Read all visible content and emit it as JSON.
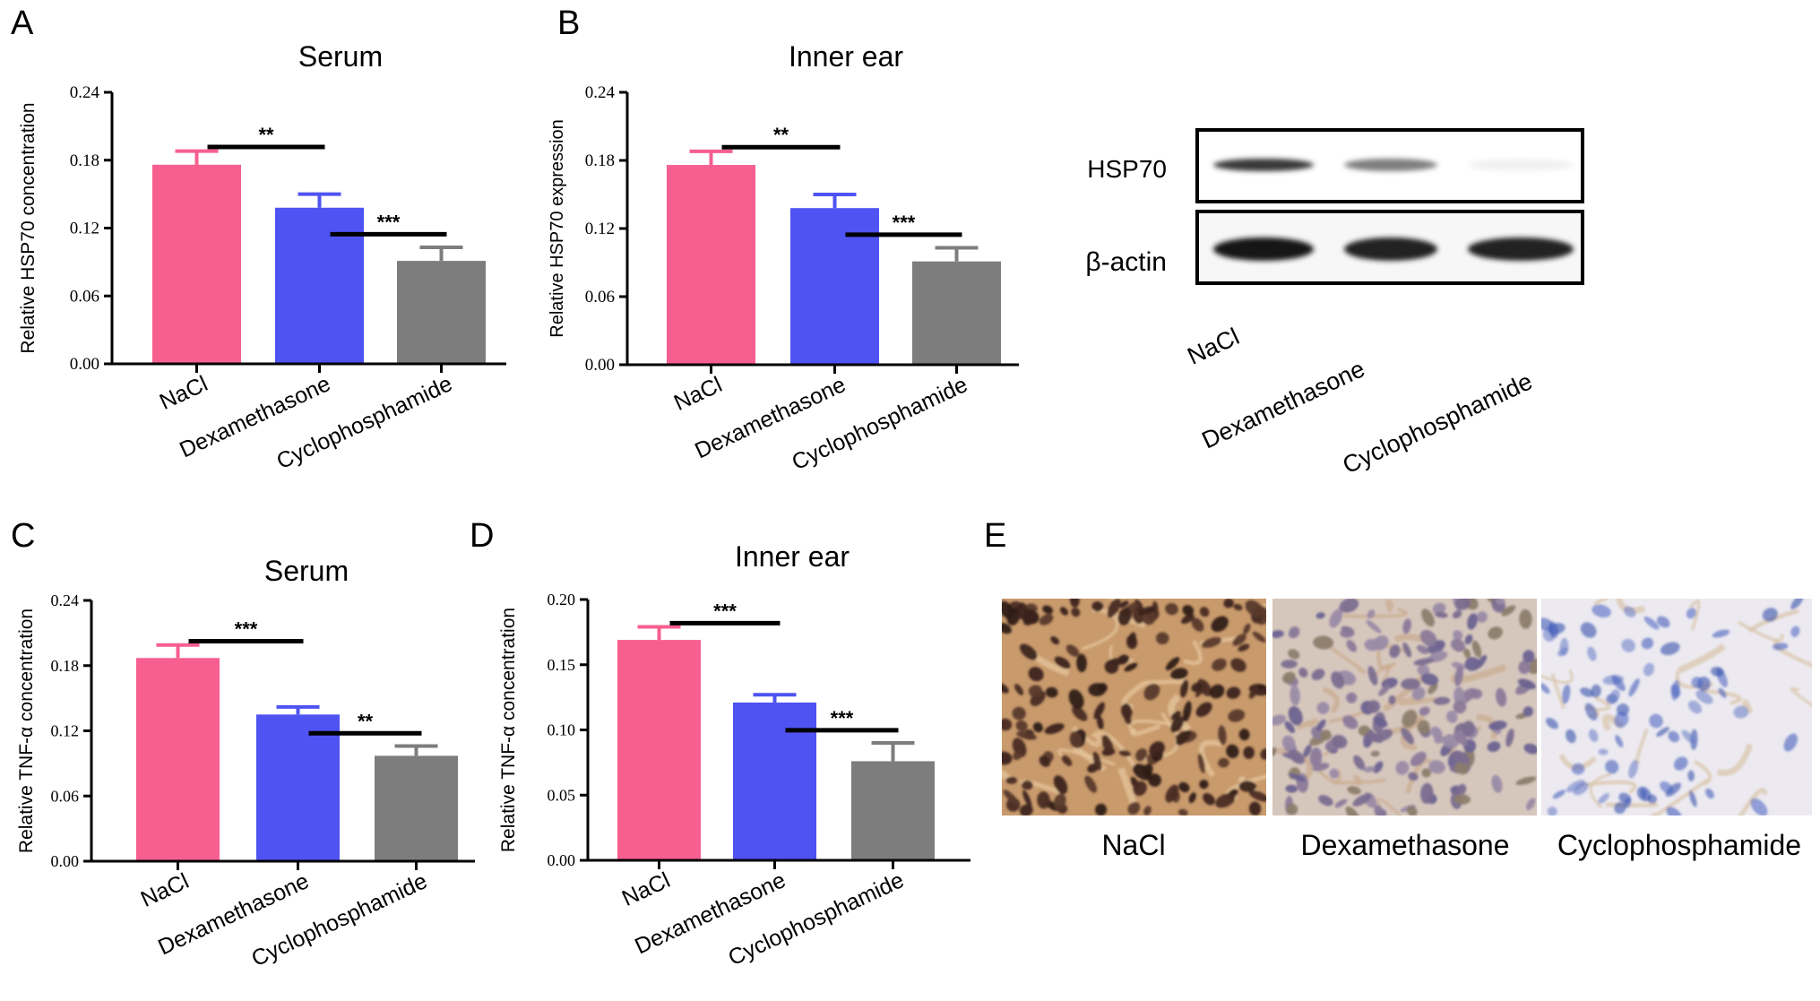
{
  "panels": {
    "A": "A",
    "B": "B",
    "C": "C",
    "D": "D",
    "E": "E"
  },
  "chart_data": [
    {
      "type": "bar",
      "panel": "A",
      "title": "Serum",
      "ylabel": "Relative HSP70 concentration",
      "categories": [
        "NaCl",
        "Dexamethasone",
        "Cyclophosphamide"
      ],
      "values": [
        0.176,
        0.138,
        0.091
      ],
      "errors": [
        0.012,
        0.012,
        0.012
      ],
      "ylim": [
        0,
        0.24
      ],
      "yticks": [
        "0.00",
        "0.06",
        "0.12",
        "0.18",
        "0.24"
      ],
      "significance": [
        {
          "from": 0,
          "to": 1,
          "label": "**"
        },
        {
          "from": 1,
          "to": 2,
          "label": "***"
        }
      ],
      "colors": [
        "#f65f8f",
        "#4f53f2",
        "#7d7d7d"
      ]
    },
    {
      "type": "bar",
      "panel": "B",
      "title": "Inner ear",
      "ylabel": "Relative HSP70 expression",
      "categories": [
        "NaCl",
        "Dexamethasone",
        "Cyclophosphamide"
      ],
      "values": [
        0.176,
        0.138,
        0.091
      ],
      "errors": [
        0.012,
        0.012,
        0.012
      ],
      "ylim": [
        0,
        0.24
      ],
      "yticks": [
        "0.00",
        "0.06",
        "0.12",
        "0.18",
        "0.24"
      ],
      "significance": [
        {
          "from": 0,
          "to": 1,
          "label": "**"
        },
        {
          "from": 1,
          "to": 2,
          "label": "***"
        }
      ],
      "colors": [
        "#f65f8f",
        "#4f53f2",
        "#7d7d7d"
      ]
    },
    {
      "type": "bar",
      "panel": "C",
      "title": "Serum",
      "ylabel": "Relative TNF-α concentration",
      "categories": [
        "NaCl",
        "Dexamethasone",
        "Cyclophosphamide"
      ],
      "values": [
        0.187,
        0.135,
        0.097
      ],
      "errors": [
        0.012,
        0.007,
        0.009
      ],
      "ylim": [
        0,
        0.24
      ],
      "yticks": [
        "0.00",
        "0.06",
        "0.12",
        "0.18",
        "0.24"
      ],
      "significance": [
        {
          "from": 0,
          "to": 1,
          "label": "***"
        },
        {
          "from": 1,
          "to": 2,
          "label": "**"
        }
      ],
      "colors": [
        "#f65f8f",
        "#4f53f2",
        "#7d7d7d"
      ]
    },
    {
      "type": "bar",
      "panel": "D",
      "title": "Inner ear",
      "ylabel": "Relative TNF-α concentration",
      "categories": [
        "NaCl",
        "Dexamethasone",
        "Cyclophosphamide"
      ],
      "values": [
        0.169,
        0.121,
        0.076
      ],
      "errors": [
        0.01,
        0.006,
        0.014
      ],
      "ylim": [
        0,
        0.2
      ],
      "yticks": [
        "0.00",
        "0.05",
        "0.10",
        "0.15",
        "0.20"
      ],
      "significance": [
        {
          "from": 0,
          "to": 1,
          "label": "***"
        },
        {
          "from": 1,
          "to": 2,
          "label": "***"
        }
      ],
      "colors": [
        "#f65f8f",
        "#4f53f2",
        "#7d7d7d"
      ]
    }
  ],
  "western_blot": {
    "rows": [
      "HSP70",
      "β-actin"
    ],
    "lanes": [
      "NaCl",
      "Dexamethasone",
      "Cyclophosphamide"
    ],
    "band_intensity": {
      "HSP70": [
        0.85,
        0.55,
        0.06
      ],
      "β-actin": [
        1.0,
        0.95,
        0.95
      ]
    }
  },
  "micrographs": {
    "captions": [
      "NaCl",
      "Dexamethasone",
      "Cyclophosphamide"
    ],
    "stain_level": [
      0.9,
      0.45,
      0.1
    ]
  }
}
